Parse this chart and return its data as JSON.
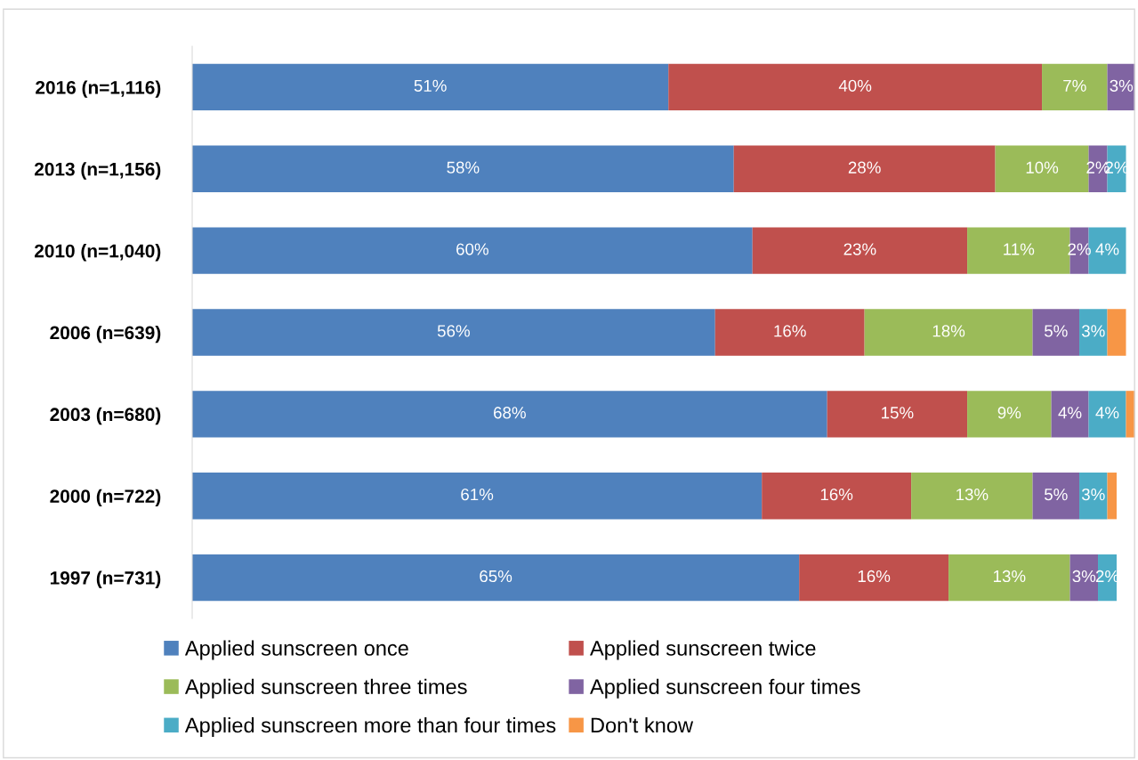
{
  "chart_data": {
    "type": "bar",
    "orientation": "horizontal",
    "stacked": true,
    "legend": "bottom",
    "grid": false,
    "tick_labels": "y",
    "categories": [
      "2016 (n=1,116)",
      "2013 (n=1,156)",
      "2010 (n=1,040)",
      "2006 (n=639)",
      "2003 (n=680)",
      "2000 (n=722)",
      "1997 (n=731)"
    ],
    "series": [
      {
        "name": "Applied sunscreen once",
        "color": "#4f81bd",
        "values": [
          51,
          58,
          60,
          56,
          68,
          61,
          65
        ],
        "value_labels": [
          "51%",
          "58%",
          "60%",
          "56%",
          "68%",
          "61%",
          "65%"
        ]
      },
      {
        "name": "Applied sunscreen twice",
        "color": "#c0504d",
        "values": [
          40,
          28,
          23,
          16,
          15,
          16,
          16
        ],
        "value_labels": [
          "40%",
          "28%",
          "23%",
          "16%",
          "15%",
          "16%",
          "16%"
        ]
      },
      {
        "name": "Applied sunscreen three times",
        "color": "#9bbb59",
        "values": [
          7,
          10,
          11,
          18,
          9,
          13,
          13
        ],
        "value_labels": [
          "7%",
          "10%",
          "11%",
          "18%",
          "9%",
          "13%",
          "13%"
        ]
      },
      {
        "name": "Applied sunscreen four times",
        "color": "#8064a2",
        "values": [
          3,
          2,
          2,
          5,
          4,
          5,
          3
        ],
        "value_labels": [
          "3%",
          "2%",
          "2%",
          "5%",
          "4%",
          "5%",
          "3%"
        ]
      },
      {
        "name": "Applied sunscreen more than four times",
        "color": "#4bacc6",
        "values": [
          null,
          2,
          4,
          3,
          4,
          3,
          2
        ],
        "value_labels": [
          null,
          "2%",
          "4%",
          "3%",
          "4%",
          "3%",
          "2%"
        ]
      },
      {
        "name": "Don't know",
        "color": "#f79646",
        "values": [
          null,
          null,
          null,
          2,
          1,
          1,
          null
        ],
        "value_labels": [
          null,
          null,
          null,
          null,
          null,
          null,
          null
        ]
      }
    ]
  }
}
